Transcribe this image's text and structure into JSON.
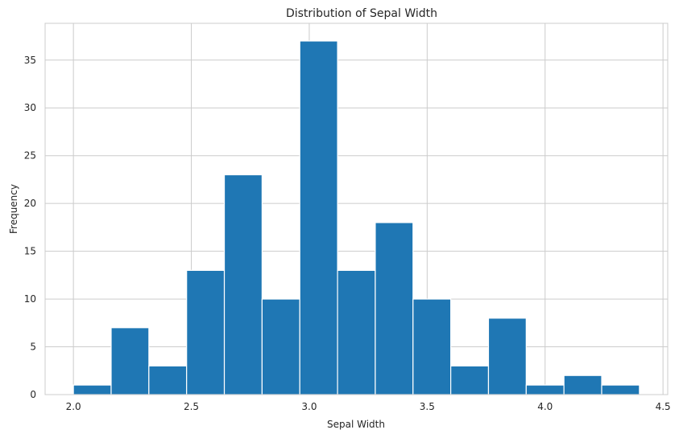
{
  "chart_data": {
    "type": "bar",
    "title": "Distribution of Sepal Width",
    "xlabel": "Sepal Width",
    "ylabel": "Frequency",
    "xlim": [
      1.88,
      4.52
    ],
    "ylim": [
      0,
      38.85
    ],
    "x_ticks": [
      2.0,
      2.5,
      3.0,
      3.5,
      4.0,
      4.5
    ],
    "x_tick_labels": [
      "2.0",
      "2.5",
      "3.0",
      "3.5",
      "4.0",
      "4.5"
    ],
    "y_ticks": [
      0,
      5,
      10,
      15,
      20,
      25,
      30,
      35
    ],
    "y_tick_labels": [
      "0",
      "5",
      "10",
      "15",
      "20",
      "25",
      "30",
      "35"
    ],
    "bin_edges": [
      2.0,
      2.16,
      2.32,
      2.48,
      2.64,
      2.8,
      2.96,
      3.12,
      3.28,
      3.44,
      3.6,
      3.76,
      3.92,
      4.08,
      4.24,
      4.4
    ],
    "values": [
      1,
      7,
      3,
      13,
      23,
      10,
      37,
      13,
      18,
      10,
      3,
      8,
      1,
      2,
      1
    ],
    "grid": true,
    "bar_color": "#1f77b4"
  }
}
